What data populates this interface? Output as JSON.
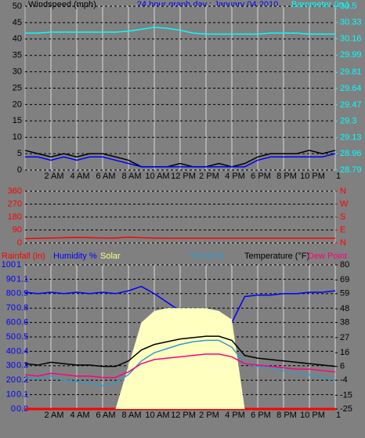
{
  "chart_data": [
    {
      "type": "line",
      "title": "24 hour graph day : January 04 2010",
      "x": [
        0,
        1,
        2,
        3,
        4,
        5,
        6,
        7,
        8,
        9,
        10,
        11,
        12,
        13,
        14,
        15,
        16,
        17,
        18,
        19,
        20,
        21,
        22,
        23,
        24
      ],
      "xlim": [
        0,
        24
      ],
      "xticks": [
        {
          "value": 2,
          "label": "2 AM"
        },
        {
          "value": 4,
          "label": "4 AM"
        },
        {
          "value": 6,
          "label": "6 AM"
        },
        {
          "value": 8,
          "label": "8 AM"
        },
        {
          "value": 10,
          "label": "10 AM"
        },
        {
          "value": 12,
          "label": "12 PM"
        },
        {
          "value": 14,
          "label": "2 PM"
        },
        {
          "value": 16,
          "label": "4 PM"
        },
        {
          "value": 18,
          "label": "6 PM"
        },
        {
          "value": 20,
          "label": "8 PM"
        },
        {
          "value": 22,
          "label": "10 PM"
        },
        {
          "value": 24,
          "label": "1"
        }
      ],
      "ylim": [
        0,
        50
      ],
      "yticks": [
        0,
        5,
        10,
        15,
        20,
        25,
        30,
        35,
        40,
        45,
        50
      ],
      "y2lim": [
        28.79,
        30.5
      ],
      "y2ticks": [
        28.79,
        28.96,
        29.13,
        29.3,
        29.47,
        29.64,
        29.81,
        29.99,
        30.16,
        30.33,
        30.5
      ],
      "grid": true,
      "series": [
        {
          "name": "Windspeed (mph)",
          "color": "#000000",
          "values": [
            6,
            5,
            4,
            5,
            4,
            5,
            5,
            4,
            3,
            1,
            1,
            1,
            2,
            1,
            1,
            2,
            1,
            2,
            4,
            5,
            5,
            5,
            6,
            5,
            6
          ]
        },
        {
          "color": "#0000ff",
          "values": [
            4,
            4,
            3,
            4,
            3,
            4,
            4,
            3,
            2,
            1,
            1,
            1,
            1,
            1,
            1,
            1,
            1,
            1,
            3,
            4,
            4,
            4,
            4,
            4,
            5
          ]
        },
        {
          "name": "Barometer (in.)",
          "color": "#00ffff",
          "axis": "y2",
          "values": [
            30.22,
            30.22,
            30.23,
            30.23,
            30.23,
            30.23,
            30.23,
            30.23,
            30.24,
            30.26,
            30.28,
            30.27,
            30.25,
            30.22,
            30.21,
            30.21,
            30.21,
            30.21,
            30.21,
            30.22,
            30.22,
            30.22,
            30.21,
            30.21,
            30.21
          ]
        }
      ]
    },
    {
      "type": "line",
      "x": [
        0,
        1,
        2,
        3,
        4,
        5,
        6,
        7,
        8,
        9,
        10,
        11,
        12,
        13,
        14,
        15,
        16,
        17,
        18,
        19,
        20,
        21,
        22,
        23,
        24
      ],
      "xlim": [
        0,
        24
      ],
      "ylim": [
        0,
        360
      ],
      "yticks": [
        0,
        90,
        180,
        270,
        360
      ],
      "y2lim": [
        0,
        360
      ],
      "y2ticks": [
        {
          "value": 0,
          "label": "N"
        },
        {
          "value": 90,
          "label": "E"
        },
        {
          "value": 180,
          "label": "S"
        },
        {
          "value": 270,
          "label": "W"
        },
        {
          "value": 360,
          "label": "N"
        }
      ],
      "grid": true,
      "series": [
        {
          "color": "#ff0000",
          "values": [
            30,
            32,
            34,
            36,
            38,
            36,
            34,
            34,
            40,
            36,
            34,
            32,
            32,
            32,
            32,
            32,
            32,
            32,
            32,
            32,
            32,
            32,
            32,
            32,
            32
          ]
        }
      ]
    },
    {
      "type": "line",
      "x": [
        0,
        1,
        2,
        3,
        4,
        5,
        6,
        7,
        8,
        9,
        10,
        11,
        12,
        13,
        14,
        15,
        16,
        17,
        18,
        19,
        20,
        21,
        22,
        23,
        24
      ],
      "xlim": [
        0,
        24
      ],
      "xticks": [
        {
          "value": 2,
          "label": "2 AM"
        },
        {
          "value": 4,
          "label": "4 AM"
        },
        {
          "value": 6,
          "label": "6 AM"
        },
        {
          "value": 8,
          "label": "8 AM"
        },
        {
          "value": 10,
          "label": "10 AM"
        },
        {
          "value": 12,
          "label": "12 PM"
        },
        {
          "value": 14,
          "label": "2 PM"
        },
        {
          "value": 16,
          "label": "4 PM"
        },
        {
          "value": 18,
          "label": "6 PM"
        },
        {
          "value": 20,
          "label": "8 PM"
        },
        {
          "value": 22,
          "label": "10 PM"
        },
        {
          "value": 24,
          "label": "1"
        }
      ],
      "ylim": [
        0,
        100
      ],
      "yticks": [
        0,
        10,
        20,
        30,
        40,
        50,
        60,
        70,
        80,
        90,
        100
      ],
      "y3ticks": [
        {
          "value": 0,
          "label": "0.0"
        },
        0.1,
        0.2,
        0.3,
        0.4,
        0.5,
        0.6,
        0.8,
        0.9,
        1.1,
        1
      ],
      "y2lim": [
        -25,
        80
      ],
      "y2ticks": [
        -25,
        -15,
        -4,
        6,
        16,
        27,
        38,
        48,
        59,
        69,
        80
      ],
      "grid": true,
      "series": [
        {
          "name": "Rainfall (in)",
          "color": "#ff0000",
          "axis": "y3",
          "values": [
            0,
            0,
            0,
            0,
            0,
            0,
            0,
            0,
            0,
            0,
            0,
            0,
            0,
            0,
            0,
            0,
            0,
            0,
            0,
            0,
            0,
            0,
            0,
            0,
            0
          ]
        },
        {
          "name": "Humidity %",
          "color": "#0000ff",
          "values": [
            81,
            80,
            81,
            80,
            81,
            80,
            81,
            80,
            82,
            85,
            80,
            74,
            68,
            62,
            58,
            57,
            60,
            78,
            79,
            79,
            80,
            80,
            81,
            81,
            82
          ]
        },
        {
          "name": "Solar",
          "color": "#ffffc0",
          "area": true,
          "values": [
            0,
            0,
            0,
            0,
            0,
            0,
            0,
            0,
            30,
            60,
            68,
            70,
            70,
            70,
            70,
            68,
            62,
            0,
            0,
            0,
            0,
            0,
            0,
            0,
            0
          ]
        },
        {
          "name": "Windchill",
          "color": "#3399cc",
          "axis": "y2",
          "values": [
            -2,
            -3,
            -1,
            -4,
            -5,
            -6,
            -8,
            -6,
            0,
            10,
            16,
            19,
            22,
            24,
            25,
            25,
            20,
            8,
            6,
            5,
            3,
            1,
            0,
            -2,
            -4
          ]
        },
        {
          "name": "Temperature (°F)",
          "color": "#000000",
          "axis": "y2",
          "values": [
            8,
            7,
            9,
            8,
            7,
            7,
            6,
            6,
            10,
            18,
            22,
            24,
            26,
            27,
            28,
            28,
            25,
            14,
            12,
            11,
            10,
            9,
            8,
            7,
            6
          ]
        },
        {
          "name": "Dew Point",
          "color": "#ff0080",
          "axis": "y2",
          "values": [
            0,
            -1,
            1,
            0,
            -1,
            -1,
            -2,
            -2,
            2,
            8,
            11,
            12,
            13,
            14,
            15,
            15,
            13,
            8,
            7,
            6,
            5,
            4,
            4,
            3,
            2
          ]
        }
      ]
    }
  ]
}
